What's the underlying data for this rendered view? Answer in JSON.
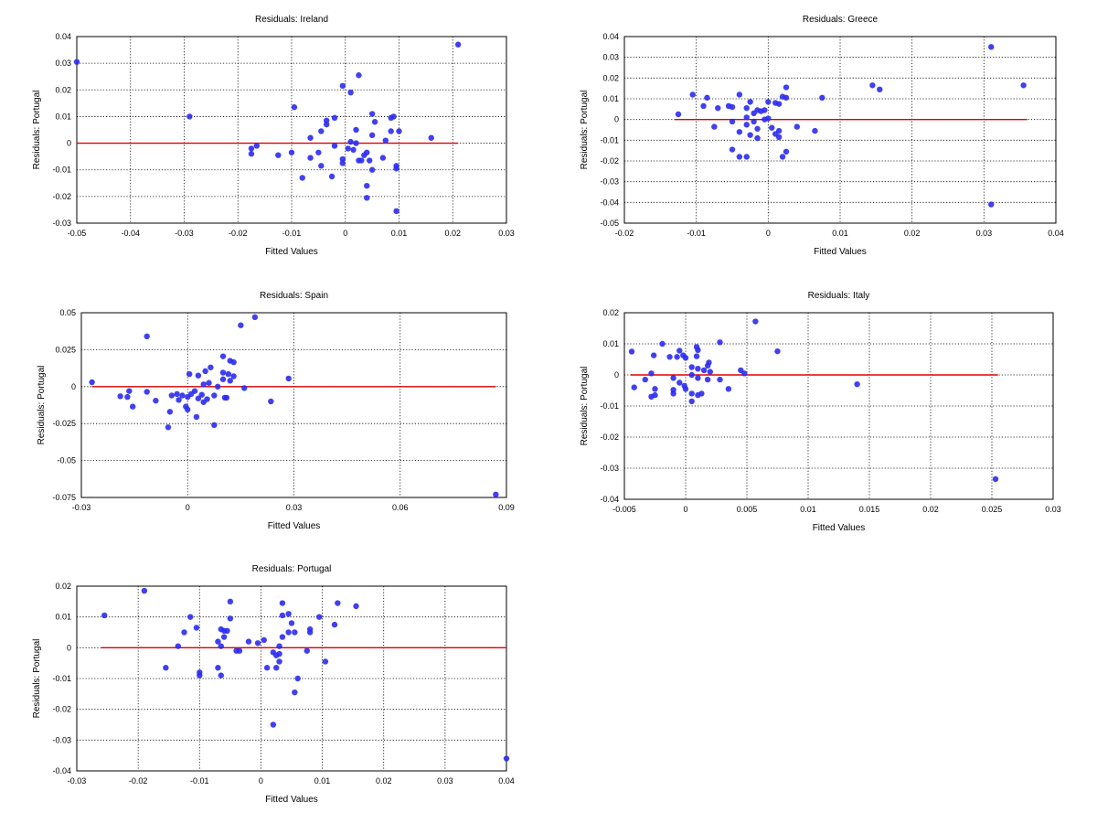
{
  "style": {
    "point_color": "#2b2bf0",
    "line_color": "#e00000",
    "grid": true
  },
  "chart_data": [
    {
      "type": "scatter",
      "title": "Residuals: Ireland",
      "xlabel": "Fitted Values",
      "ylabel": "Residuals: Portugal",
      "xlim": [
        -0.05,
        0.03
      ],
      "ylim": [
        -0.03,
        0.04
      ],
      "x_ticks": [
        -0.05,
        -0.04,
        -0.03,
        -0.02,
        -0.01,
        0,
        0.01,
        0.02,
        0.03
      ],
      "x_tick_labels": [
        "-0.05",
        "-0.04",
        "-0.03",
        "-0.02",
        "-0.01",
        "0",
        "0.01",
        "0.02",
        "0.03"
      ],
      "y_ticks": [
        -0.03,
        -0.02,
        -0.01,
        0,
        0.01,
        0.02,
        0.03,
        0.04
      ],
      "y_tick_labels": [
        "-0.03",
        "-0.02",
        "-0.01",
        "0",
        "0.01",
        "0.02",
        "0.03",
        "0.04"
      ],
      "reference_line": {
        "y": 0,
        "x_from": -0.05,
        "x_to": 0.021
      },
      "points": [
        [
          -0.05,
          0.0305
        ],
        [
          0.021,
          0.037
        ],
        [
          -0.029,
          0.01
        ],
        [
          0.0025,
          0.0255
        ],
        [
          -0.0005,
          0.0215
        ],
        [
          0.001,
          0.019
        ],
        [
          -0.0095,
          0.0135
        ],
        [
          0.005,
          0.011
        ],
        [
          0.009,
          0.01
        ],
        [
          0.0085,
          0.0095
        ],
        [
          0.0055,
          0.008
        ],
        [
          -0.0035,
          0.0085
        ],
        [
          -0.002,
          0.0095
        ],
        [
          -0.0035,
          0.007
        ],
        [
          0.002,
          0.005
        ],
        [
          0.0085,
          0.0045
        ],
        [
          0.01,
          0.0045
        ],
        [
          -0.0045,
          0.0045
        ],
        [
          0.005,
          0.003
        ],
        [
          -0.0065,
          0.002
        ],
        [
          0.016,
          0.002
        ],
        [
          0.0075,
          0.001
        ],
        [
          0.001,
          0.0005
        ],
        [
          0.002,
          0.0
        ],
        [
          -0.0165,
          -0.001
        ],
        [
          -0.0175,
          -0.002
        ],
        [
          -0.01,
          -0.0035
        ],
        [
          -0.005,
          -0.0035
        ],
        [
          -0.0175,
          -0.004
        ],
        [
          -0.0125,
          -0.0045
        ],
        [
          -0.002,
          -0.001
        ],
        [
          0.0005,
          -0.002
        ],
        [
          0.0015,
          -0.0025
        ],
        [
          0.0035,
          -0.0045
        ],
        [
          0.004,
          -0.0035
        ],
        [
          0.007,
          -0.0055
        ],
        [
          -0.0065,
          -0.0055
        ],
        [
          -0.0005,
          -0.006
        ],
        [
          0.0025,
          -0.0065
        ],
        [
          0.003,
          -0.0065
        ],
        [
          0.0045,
          -0.0065
        ],
        [
          -0.0005,
          -0.0075
        ],
        [
          -0.0045,
          -0.0085
        ],
        [
          0.0095,
          -0.0085
        ],
        [
          0.0095,
          -0.0095
        ],
        [
          0.005,
          -0.01
        ],
        [
          -0.008,
          -0.013
        ],
        [
          -0.0025,
          -0.0125
        ],
        [
          0.004,
          -0.016
        ],
        [
          0.004,
          -0.0205
        ],
        [
          0.0095,
          -0.0255
        ]
      ]
    },
    {
      "type": "scatter",
      "title": "Residuals: Greece",
      "xlabel": "Fitted Values",
      "ylabel": "Residuals: Portugal",
      "xlim": [
        -0.02,
        0.04
      ],
      "ylim": [
        -0.05,
        0.04
      ],
      "x_ticks": [
        -0.02,
        -0.01,
        0,
        0.01,
        0.02,
        0.03,
        0.04
      ],
      "x_tick_labels": [
        "-0.02",
        "-0.01",
        "0",
        "0.01",
        "0.02",
        "0.03",
        "0.04"
      ],
      "y_ticks": [
        -0.05,
        -0.04,
        -0.03,
        -0.02,
        -0.01,
        0,
        0.01,
        0.02,
        0.03,
        0.04
      ],
      "y_tick_labels": [
        "-0.05",
        "-0.04",
        "-0.03",
        "-0.02",
        "-0.01",
        "0",
        "0.01",
        "0.02",
        "0.03",
        "0.04"
      ],
      "reference_line": {
        "y": 0,
        "x_from": -0.013,
        "x_to": 0.036
      },
      "points": [
        [
          0.031,
          0.035
        ],
        [
          0.0355,
          0.0165
        ],
        [
          0.0145,
          0.0165
        ],
        [
          0.0155,
          0.0145
        ],
        [
          0.0025,
          0.0155
        ],
        [
          -0.0105,
          0.012
        ],
        [
          -0.004,
          0.012
        ],
        [
          -0.0085,
          0.0105
        ],
        [
          0.002,
          0.011
        ],
        [
          0.0025,
          0.0105
        ],
        [
          0.0075,
          0.0105
        ],
        [
          -0.0025,
          0.0085
        ],
        [
          0.0,
          0.0085
        ],
        [
          0.001,
          0.008
        ],
        [
          0.0015,
          0.0075
        ],
        [
          -0.009,
          0.0065
        ],
        [
          -0.007,
          0.0055
        ],
        [
          -0.0055,
          0.0065
        ],
        [
          -0.005,
          0.006
        ],
        [
          -0.003,
          0.0055
        ],
        [
          -0.0015,
          0.0045
        ],
        [
          -0.001,
          0.004
        ],
        [
          -0.0005,
          0.0045
        ],
        [
          -0.002,
          0.003
        ],
        [
          -0.0125,
          0.0025
        ],
        [
          -0.003,
          0.001
        ],
        [
          -0.0005,
          0.0
        ],
        [
          0.0,
          0.0005
        ],
        [
          -0.002,
          -0.001
        ],
        [
          -0.003,
          -0.0025
        ],
        [
          -0.0075,
          -0.0035
        ],
        [
          -0.005,
          -0.001
        ],
        [
          0.004,
          -0.0035
        ],
        [
          0.0005,
          -0.004
        ],
        [
          -0.0015,
          -0.0045
        ],
        [
          -0.004,
          -0.006
        ],
        [
          0.0015,
          -0.0055
        ],
        [
          0.0065,
          -0.0055
        ],
        [
          -0.0025,
          -0.0075
        ],
        [
          0.001,
          -0.007
        ],
        [
          0.0015,
          -0.0085
        ],
        [
          -0.0015,
          -0.009
        ],
        [
          -0.005,
          -0.0145
        ],
        [
          0.0025,
          -0.0155
        ],
        [
          0.002,
          -0.018
        ],
        [
          -0.004,
          -0.018
        ],
        [
          -0.003,
          -0.018
        ],
        [
          0.031,
          -0.041
        ]
      ]
    },
    {
      "type": "scatter",
      "title": "Residuals: Spain",
      "xlabel": "Fitted Values",
      "ylabel": "Residuals: Portugal",
      "xlim": [
        -0.03,
        0.09
      ],
      "ylim": [
        -0.075,
        0.05
      ],
      "x_ticks": [
        -0.03,
        0,
        0.03,
        0.06,
        0.09
      ],
      "x_tick_labels": [
        "-0.03",
        "0",
        "0.03",
        "0.06",
        "0.09"
      ],
      "y_ticks": [
        -0.075,
        -0.05,
        -0.025,
        0,
        0.025,
        0.05
      ],
      "y_tick_labels": [
        "-0.075",
        "-0.05",
        "-0.025",
        "0",
        "0.025",
        "0.05"
      ],
      "reference_line": {
        "y": 0,
        "x_from": -0.027,
        "x_to": 0.087
      },
      "points": [
        [
          0.019,
          0.047
        ],
        [
          0.015,
          0.0415
        ],
        [
          -0.0115,
          0.034
        ],
        [
          0.01,
          0.0205
        ],
        [
          0.012,
          0.0175
        ],
        [
          0.013,
          0.0165
        ],
        [
          0.0065,
          0.013
        ],
        [
          0.005,
          0.0105
        ],
        [
          0.01,
          0.0095
        ],
        [
          0.0115,
          0.0085
        ],
        [
          0.0005,
          0.0085
        ],
        [
          0.003,
          0.0075
        ],
        [
          0.013,
          0.007
        ],
        [
          0.0285,
          0.0055
        ],
        [
          0.01,
          0.005
        ],
        [
          0.012,
          0.004
        ],
        [
          0.006,
          0.0025
        ],
        [
          0.0045,
          0.0015
        ],
        [
          0.0085,
          0.0
        ],
        [
          -0.027,
          0.003
        ],
        [
          0.016,
          -0.001
        ],
        [
          -0.0165,
          -0.003
        ],
        [
          -0.0115,
          -0.0035
        ],
        [
          0.002,
          -0.003
        ],
        [
          0.001,
          -0.005
        ],
        [
          -0.003,
          -0.005
        ],
        [
          -0.0015,
          -0.006
        ],
        [
          0.004,
          -0.0055
        ],
        [
          -0.0045,
          -0.006
        ],
        [
          -0.019,
          -0.0065
        ],
        [
          -0.017,
          -0.007
        ],
        [
          0.0075,
          -0.006
        ],
        [
          0.0,
          -0.007
        ],
        [
          0.003,
          -0.008
        ],
        [
          0.0055,
          -0.0085
        ],
        [
          0.0105,
          -0.0075
        ],
        [
          0.011,
          -0.0075
        ],
        [
          -0.0025,
          -0.009
        ],
        [
          -0.009,
          -0.0095
        ],
        [
          0.0235,
          -0.01
        ],
        [
          0.0045,
          -0.0105
        ],
        [
          -0.0155,
          -0.0135
        ],
        [
          -0.0005,
          -0.0135
        ],
        [
          0.0,
          -0.0155
        ],
        [
          -0.005,
          -0.017
        ],
        [
          0.0025,
          -0.0205
        ],
        [
          0.0075,
          -0.026
        ],
        [
          -0.0055,
          -0.0275
        ],
        [
          0.087,
          -0.073
        ]
      ]
    },
    {
      "type": "scatter",
      "title": "Residuals: Italy",
      "xlabel": "Fitted Values",
      "ylabel": "Residuals: Portugal",
      "xlim": [
        -0.005,
        0.03
      ],
      "ylim": [
        -0.04,
        0.02
      ],
      "x_ticks": [
        -0.005,
        0,
        0.005,
        0.01,
        0.015,
        0.02,
        0.025,
        0.03
      ],
      "x_tick_labels": [
        "-0.005",
        "0",
        "0.005",
        "0.01",
        "0.015",
        "0.02",
        "0.025",
        "0.03"
      ],
      "y_ticks": [
        -0.04,
        -0.03,
        -0.02,
        -0.01,
        0,
        0.01,
        0.02
      ],
      "y_tick_labels": [
        "-0.04",
        "-0.03",
        "-0.02",
        "-0.01",
        "0",
        "0.01",
        "0.02"
      ],
      "reference_line": {
        "y": 0,
        "x_from": -0.0045,
        "x_to": 0.0255
      },
      "points": [
        [
          0.0057,
          0.0172
        ],
        [
          0.0028,
          0.0105
        ],
        [
          -0.0019,
          0.01
        ],
        [
          -0.0005,
          0.0078
        ],
        [
          0.0009,
          0.009
        ],
        [
          0.001,
          0.008
        ],
        [
          0.0075,
          0.0076
        ],
        [
          -0.0044,
          0.0075
        ],
        [
          -0.0026,
          0.0063
        ],
        [
          -0.0013,
          0.0058
        ],
        [
          -0.0007,
          0.0058
        ],
        [
          -0.0002,
          0.0063
        ],
        [
          0.0,
          0.0055
        ],
        [
          0.0009,
          0.006
        ],
        [
          0.0019,
          0.004
        ],
        [
          0.0018,
          0.003
        ],
        [
          0.0005,
          0.0025
        ],
        [
          0.001,
          0.002
        ],
        [
          0.0015,
          0.0015
        ],
        [
          0.002,
          0.001
        ],
        [
          0.0045,
          0.0015
        ],
        [
          0.0048,
          0.0005
        ],
        [
          -0.0028,
          0.0005
        ],
        [
          0.0005,
          0.0
        ],
        [
          -0.001,
          -0.001
        ],
        [
          0.001,
          -0.001
        ],
        [
          -0.0033,
          -0.0015
        ],
        [
          0.0018,
          -0.0015
        ],
        [
          0.0028,
          -0.0015
        ],
        [
          -0.0005,
          -0.0025
        ],
        [
          -0.0001,
          -0.0035
        ],
        [
          0.0,
          -0.0045
        ],
        [
          -0.0042,
          -0.004
        ],
        [
          -0.0025,
          -0.0045
        ],
        [
          0.0035,
          -0.0045
        ],
        [
          -0.001,
          -0.0048
        ],
        [
          -0.001,
          -0.006
        ],
        [
          0.0005,
          -0.006
        ],
        [
          -0.0028,
          -0.007
        ],
        [
          -0.0025,
          -0.0065
        ],
        [
          0.001,
          -0.0065
        ],
        [
          0.0013,
          -0.006
        ],
        [
          0.0005,
          -0.0085
        ],
        [
          0.014,
          -0.003
        ],
        [
          0.0253,
          -0.0335
        ]
      ]
    },
    {
      "type": "scatter",
      "title": "Residuals: Portugal",
      "xlabel": "Fitted Values",
      "ylabel": "Residuals: Portugal",
      "xlim": [
        -0.03,
        0.04
      ],
      "ylim": [
        -0.04,
        0.02
      ],
      "x_ticks": [
        -0.03,
        -0.02,
        -0.01,
        0,
        0.01,
        0.02,
        0.03,
        0.04
      ],
      "x_tick_labels": [
        "-0.03",
        "-0.02",
        "-0.01",
        "0",
        "0.01",
        "0.02",
        "0.03",
        "0.04"
      ],
      "y_ticks": [
        -0.04,
        -0.03,
        -0.02,
        -0.01,
        0,
        0.01,
        0.02
      ],
      "y_tick_labels": [
        "-0.04",
        "-0.03",
        "-0.02",
        "-0.01",
        "0",
        "0.01",
        "0.02"
      ],
      "reference_line": {
        "y": 0,
        "x_from": -0.026,
        "x_to": 0.04
      },
      "points": [
        [
          -0.019,
          0.0185
        ],
        [
          -0.005,
          0.015
        ],
        [
          0.0125,
          0.0145
        ],
        [
          0.0155,
          0.0135
        ],
        [
          0.0035,
          0.0145
        ],
        [
          0.0045,
          0.011
        ],
        [
          0.0035,
          0.0105
        ],
        [
          -0.0255,
          0.0105
        ],
        [
          -0.0115,
          0.01
        ],
        [
          0.0095,
          0.01
        ],
        [
          -0.005,
          0.0095
        ],
        [
          0.005,
          0.008
        ],
        [
          0.012,
          0.0075
        ],
        [
          -0.0105,
          0.0065
        ],
        [
          -0.0065,
          0.006
        ],
        [
          -0.006,
          0.0055
        ],
        [
          -0.0055,
          0.0055
        ],
        [
          0.008,
          0.006
        ],
        [
          0.008,
          0.005
        ],
        [
          -0.0125,
          0.005
        ],
        [
          0.0045,
          0.005
        ],
        [
          0.0055,
          0.005
        ],
        [
          -0.006,
          0.0035
        ],
        [
          0.0035,
          0.0035
        ],
        [
          -0.007,
          0.002
        ],
        [
          -0.002,
          0.002
        ],
        [
          -0.0005,
          0.0015
        ],
        [
          0.0005,
          0.0025
        ],
        [
          -0.0135,
          0.0005
        ],
        [
          -0.0065,
          0.0005
        ],
        [
          0.003,
          0.0005
        ],
        [
          -0.004,
          -0.001
        ],
        [
          -0.0035,
          -0.001
        ],
        [
          0.002,
          -0.0015
        ],
        [
          0.003,
          -0.002
        ],
        [
          0.0025,
          -0.0025
        ],
        [
          0.0075,
          -0.001
        ],
        [
          0.003,
          -0.0045
        ],
        [
          0.0105,
          -0.0045
        ],
        [
          -0.0155,
          -0.0065
        ],
        [
          0.001,
          -0.0065
        ],
        [
          0.0025,
          -0.0065
        ],
        [
          -0.007,
          -0.0065
        ],
        [
          -0.01,
          -0.008
        ],
        [
          -0.01,
          -0.009
        ],
        [
          -0.0065,
          -0.009
        ],
        [
          0.006,
          -0.01
        ],
        [
          0.0055,
          -0.0145
        ],
        [
          0.002,
          -0.025
        ],
        [
          0.04,
          -0.036
        ]
      ]
    }
  ]
}
